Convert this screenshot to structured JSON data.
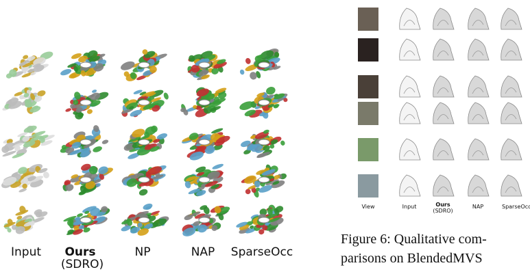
{
  "left_figure": {
    "labels": [
      "Input",
      "Ours",
      "(SDRO)",
      "NP",
      "NAP",
      "SparseOcc"
    ]
  },
  "right_figure": {
    "labels": [
      "View",
      "Input",
      "Ours",
      "(SDRO)",
      "NAP",
      "SparseOcc"
    ],
    "caption": [
      "Figure 6: Qualitative com-",
      "parisons on BlendedMVS"
    ]
  }
}
